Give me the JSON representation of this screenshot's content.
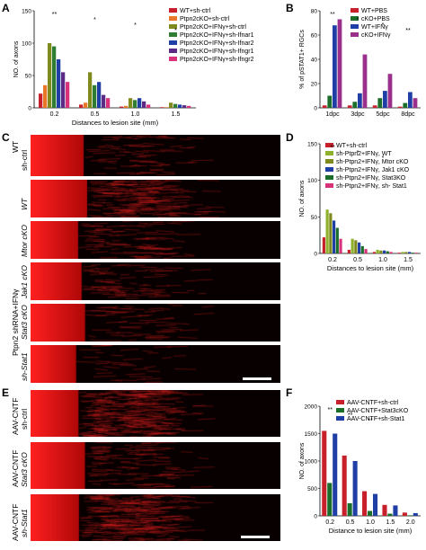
{
  "panels": {
    "A": "A",
    "B": "B",
    "C": "C",
    "D": "D",
    "E": "E",
    "F": "F"
  },
  "colors": {
    "red": "#c8202a",
    "orange": "#e8772a",
    "olive": "#7e8a1c",
    "green": "#2e7d32",
    "blue": "#1f3fa6",
    "purple": "#5b2a86",
    "pink": "#d8327a",
    "lightgreen": "#8fb02a",
    "darkgreen": "#1b6e2a",
    "magenta": "#9a2f8c"
  },
  "panelC": {
    "wt_label": "WT",
    "wt_sub": "sh-ctrl",
    "group_label": "Ptpn2 shRNA+IFNγ",
    "rows": [
      "WT",
      "Mtor cKO",
      "Jak1 cKO",
      "Stat3 cKO",
      "sh-Stat1"
    ]
  },
  "panelE": {
    "rows": [
      {
        "l1": "AAV-CNTF",
        "l2": "sh-ctrl"
      },
      {
        "l1": "AAV-CNTF",
        "l2": "Stat3 cKO"
      },
      {
        "l1": "AAV-CNTF",
        "l2": "sh-Stat1"
      }
    ]
  },
  "chart_data": [
    {
      "panel": "A",
      "type": "bar",
      "ylabel": "NO. of axons",
      "xlabel": "Distances to lesion site (mm)",
      "ylim": [
        0,
        150
      ],
      "yticks": [
        0,
        50,
        100,
        150
      ],
      "categories": [
        "0.2",
        "0.5",
        "1.0",
        "1.5"
      ],
      "series": [
        {
          "name": "WT+sh-ctrl",
          "values": [
            22,
            5,
            2,
            1
          ]
        },
        {
          "name": "Ptpn2cKO+sh-ctrl",
          "values": [
            35,
            8,
            3,
            1
          ]
        },
        {
          "name": "Ptpn2cKO+IFNγ+sh-ctrl",
          "values": [
            100,
            55,
            15,
            8
          ]
        },
        {
          "name": "Ptpn2cKO+IFNγ+sh-Ifnar1",
          "values": [
            95,
            35,
            12,
            6
          ]
        },
        {
          "name": "Ptpn2cKO+IFNγ+sh-Ifnar2",
          "values": [
            75,
            40,
            15,
            5
          ]
        },
        {
          "name": "Ptpn2cKO+IFNγ+sh-Ifngr1",
          "values": [
            55,
            20,
            10,
            4
          ]
        },
        {
          "name": "Ptpn2cKO+IFNγ+sh-Ifngr2",
          "values": [
            40,
            15,
            5,
            3
          ]
        }
      ],
      "annotations": [
        "**",
        "*",
        "*",
        "*"
      ]
    },
    {
      "panel": "B",
      "type": "bar",
      "ylabel": "% of pSTAT1+ RGCs",
      "ylim": [
        0,
        80
      ],
      "yticks": [
        0,
        20,
        40,
        60,
        80
      ],
      "categories": [
        "1dpc",
        "3dpc",
        "5dpc",
        "8dpc"
      ],
      "series": [
        {
          "name": "WT+PBS",
          "values": [
            2,
            2,
            2,
            1
          ]
        },
        {
          "name": "cKO+PBS",
          "values": [
            10,
            5,
            8,
            4
          ]
        },
        {
          "name": "WT+IFNγ",
          "values": [
            68,
            12,
            14,
            13
          ]
        },
        {
          "name": "cKO+IFNγ",
          "values": [
            73,
            44,
            28,
            8
          ]
        }
      ],
      "annotations": [
        "**",
        "*",
        "*",
        "**"
      ]
    },
    {
      "panel": "D",
      "type": "bar",
      "ylabel": "NO. of axons",
      "xlabel": "Distances to lesion site (mm)",
      "ylim": [
        0,
        150
      ],
      "yticks": [
        0,
        50,
        100,
        150
      ],
      "categories": [
        "0.2",
        "0.5",
        "1.0",
        "1.5"
      ],
      "series": [
        {
          "name": "WT+sh-ctrl",
          "values": [
            22,
            5,
            2,
            1
          ]
        },
        {
          "name": "sh-Ptpn2+IFNγ, WT",
          "values": [
            60,
            20,
            5,
            2
          ]
        },
        {
          "name": "sh-Ptpn2+IFNγ, Mtor cKO",
          "values": [
            55,
            18,
            4,
            2
          ]
        },
        {
          "name": "sh-Ptpn2+IFNγ, Jak1 cKO",
          "values": [
            45,
            15,
            4,
            2
          ]
        },
        {
          "name": "sh-Ptpn2+IFNγ, Stat3KO",
          "values": [
            35,
            10,
            3,
            1
          ]
        },
        {
          "name": "sh-Ptpn2+IFNγ, sh- Stat1",
          "values": [
            20,
            6,
            2,
            1
          ]
        }
      ],
      "annotations": [
        "**",
        "*",
        "*"
      ]
    },
    {
      "panel": "F",
      "type": "bar",
      "ylabel": "NO. of axons",
      "xlabel": "Distance to lesion site (mm)",
      "ylim": [
        0,
        2000
      ],
      "yticks": [
        0,
        500,
        1000,
        1500,
        2000
      ],
      "categories": [
        "0.2",
        "0.5",
        "1.0",
        "1.5",
        "2.0"
      ],
      "series": [
        {
          "name": "AAV-CNTF+sh-ctrl",
          "values": [
            1550,
            1100,
            450,
            200,
            60
          ]
        },
        {
          "name": "AAV-CNTF+Stat3cKO",
          "values": [
            600,
            230,
            90,
            40,
            10
          ]
        },
        {
          "name": "AAV-CNTF+sh-Stat1",
          "values": [
            1500,
            1000,
            400,
            190,
            50
          ]
        }
      ],
      "annotations": [
        "**",
        "**",
        "**"
      ]
    }
  ]
}
